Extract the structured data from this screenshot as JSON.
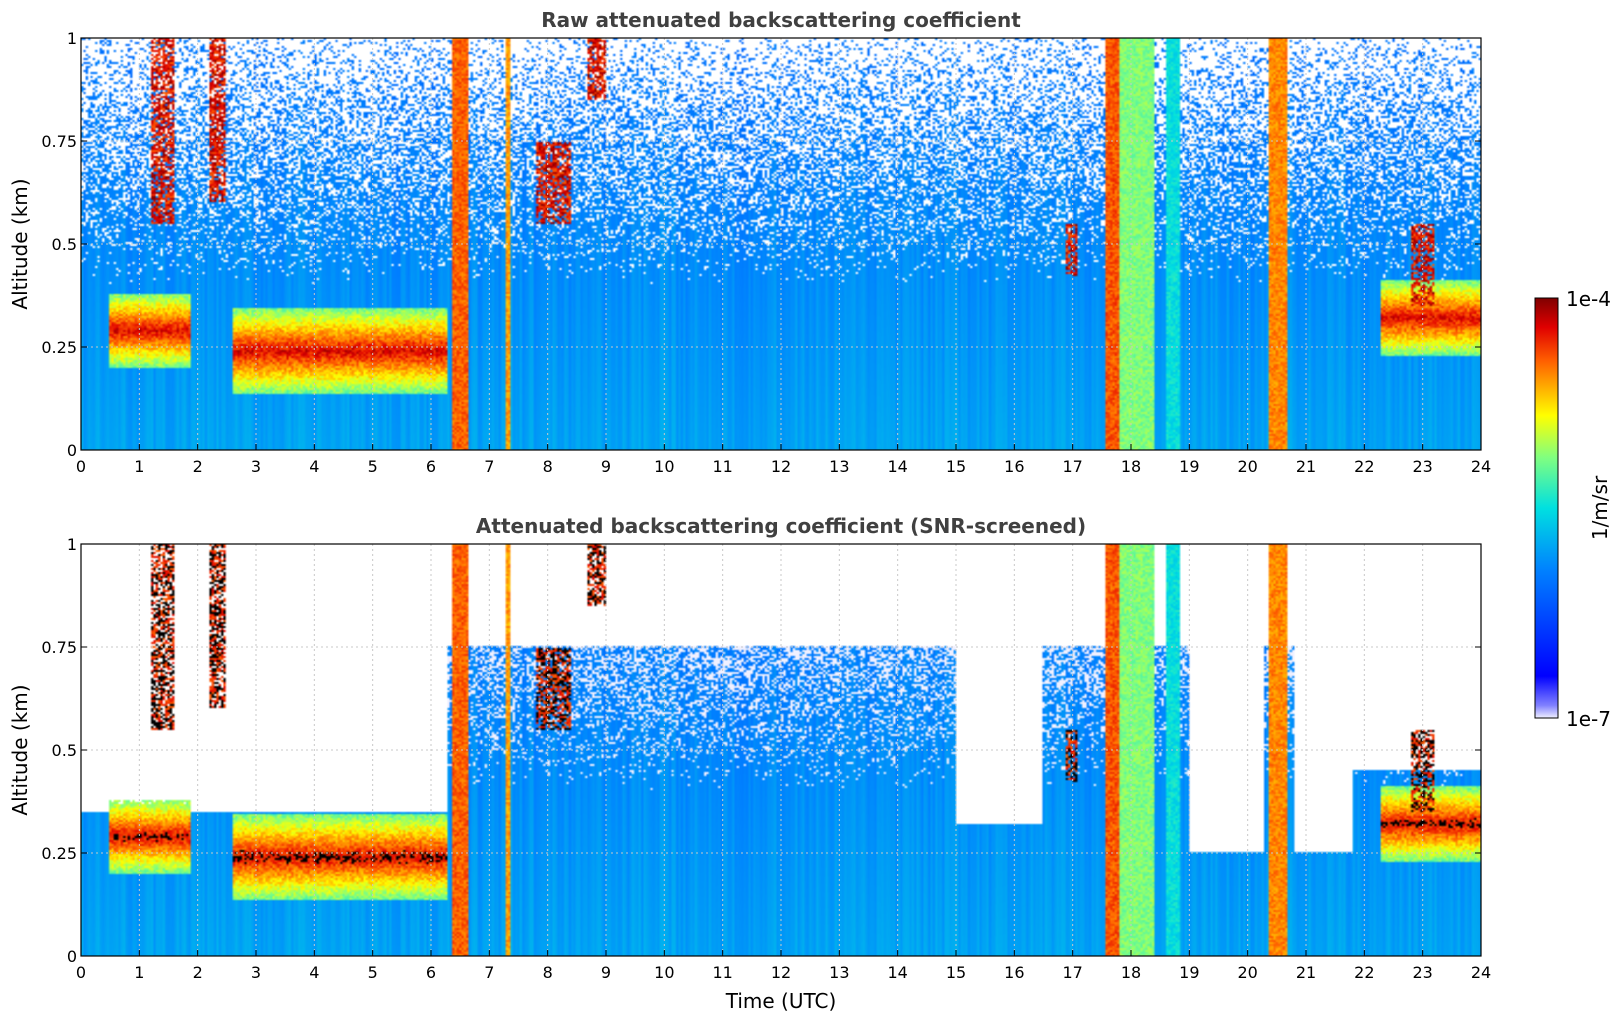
{
  "colors": {
    "low_background": "#1e3cff",
    "grid": "#c8c8c8",
    "colormap": "jet"
  },
  "chart_data": [
    {
      "type": "heatmap",
      "title": "Raw attenuated backscattering coefficient",
      "xlabel": "",
      "ylabel": "Altitude (km)",
      "xlim": [
        0,
        24
      ],
      "ylim": [
        0,
        1
      ],
      "xticks": [
        "0",
        "1",
        "2",
        "3",
        "4",
        "5",
        "6",
        "7",
        "8",
        "9",
        "10",
        "11",
        "12",
        "13",
        "14",
        "15",
        "16",
        "17",
        "18",
        "19",
        "20",
        "21",
        "22",
        "23",
        "24"
      ],
      "yticks": [
        "0",
        "0.25",
        "0.5",
        "0.75",
        "1"
      ],
      "grid": true,
      "screened": false
    },
    {
      "type": "heatmap",
      "title": "Attenuated backscattering coefficient (SNR-screened)",
      "xlabel": "Time (UTC)",
      "ylabel": "Altitude (km)",
      "xlim": [
        0,
        24
      ],
      "ylim": [
        0,
        1
      ],
      "xticks": [
        "0",
        "1",
        "2",
        "3",
        "4",
        "5",
        "6",
        "7",
        "8",
        "9",
        "10",
        "11",
        "12",
        "13",
        "14",
        "15",
        "16",
        "17",
        "18",
        "19",
        "20",
        "21",
        "22",
        "23",
        "24"
      ],
      "yticks": [
        "0",
        "0.25",
        "0.5",
        "0.75",
        "1"
      ],
      "grid": true,
      "screened": true
    }
  ],
  "colorbar": {
    "label": "1/m/sr",
    "max_label": "1e-4",
    "min_label": "1e-7",
    "scale": "log"
  },
  "features": {
    "aerosol_layers": [
      {
        "t0": 0.5,
        "t1": 1.9,
        "z": 0.29,
        "w": 0.07
      },
      {
        "t0": 2.6,
        "t1": 6.3,
        "z": 0.24,
        "w": 0.08
      },
      {
        "t0": 22.3,
        "t1": 24.0,
        "z": 0.32,
        "w": 0.07
      }
    ],
    "clouds": [
      {
        "t0": 1.2,
        "t1": 1.6,
        "z0": 0.55,
        "z1": 1.0
      },
      {
        "t0": 2.2,
        "t1": 2.5,
        "z0": 0.6,
        "z1": 1.0
      },
      {
        "t0": 7.8,
        "t1": 8.4,
        "z0": 0.55,
        "z1": 0.75
      },
      {
        "t0": 8.7,
        "t1": 9.0,
        "z0": 0.85,
        "z1": 1.0
      },
      {
        "t0": 16.9,
        "t1": 17.1,
        "z0": 0.42,
        "z1": 0.55
      },
      {
        "t0": 22.8,
        "t1": 23.2,
        "z0": 0.35,
        "z1": 0.55
      }
    ],
    "precip_bands": [
      {
        "t0": 6.35,
        "t1": 6.65,
        "level": 0.85
      },
      {
        "t0": 7.28,
        "t1": 7.36,
        "level": 0.8
      },
      {
        "t0": 17.55,
        "t1": 17.8,
        "level": 0.86
      },
      {
        "t0": 17.8,
        "t1": 18.4,
        "level": 0.62
      },
      {
        "t0": 18.6,
        "t1": 18.85,
        "level": 0.5
      },
      {
        "t0": 20.35,
        "t1": 20.7,
        "level": 0.82
      }
    ],
    "screen_top": [
      {
        "t0": 0.0,
        "t1": 6.3,
        "z": 0.35
      },
      {
        "t0": 15.0,
        "t1": 16.5,
        "z": 0.32
      },
      {
        "t0": 19.0,
        "t1": 20.3,
        "z": 0.25
      },
      {
        "t0": 20.8,
        "t1": 21.8,
        "z": 0.25
      },
      {
        "t0": 21.8,
        "t1": 24.0,
        "z": 0.45
      }
    ]
  }
}
